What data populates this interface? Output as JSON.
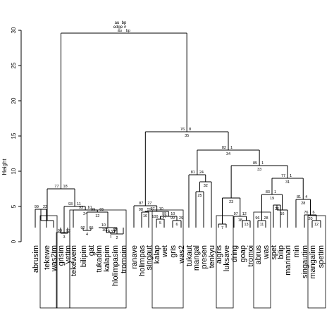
{
  "chart_data": {
    "type": "dendrogram",
    "ylabel": "Height",
    "ylim": [
      0,
      30
    ],
    "yticks": [
      "0",
      "5",
      "10",
      "15",
      "20",
      "25",
      "30"
    ],
    "root_labels": {
      "au": "au",
      "bp": "bp",
      "edge": "edge #"
    },
    "leaves": [
      "abrusim",
      "tekewe",
      "was2im",
      "grisim",
      "yetim",
      "tekewem",
      "bilipim",
      "gat",
      "tukadim",
      "kalapim",
      "hlolimpasim",
      "tromoim",
      "ranave",
      "holimpas",
      "singaut",
      "kalap",
      "wet",
      "gris",
      "was2",
      "tukaut",
      "mangal",
      "presen",
      "tenkyu",
      "aigris",
      "luksave",
      "dring",
      "goap",
      "tromoi",
      "abrus",
      "was",
      "spet",
      "bilip",
      "marimari",
      "min",
      "singautim",
      "mangalim",
      "spetim"
    ],
    "nodes": [
      {
        "id": "n1",
        "a": "L:abrusim",
        "b": "L:tekewe",
        "h": 4.6,
        "au": "99",
        "bp": "22"
      },
      {
        "id": "n2",
        "a": "n1",
        "b": "L:was2im",
        "h": 3.0,
        "au": "",
        "bp": ""
      },
      {
        "id": "n3",
        "a": "L:grisim",
        "b": "L:yetim",
        "h": 1.2,
        "au": "99",
        "bp": "92",
        "edge": "3"
      },
      {
        "id": "n4",
        "a": "L:bilipim",
        "b": "L:gat",
        "h": 1.6,
        "au": "92",
        "bp": "65",
        "edge": "4"
      },
      {
        "id": "n5",
        "a": "L:kalapim",
        "b": "L:hlolimpasim",
        "h": 1.3,
        "au": "100",
        "bp": "12",
        "edge": "1"
      },
      {
        "id": "n6",
        "a": "n5",
        "b": "L:tromoim",
        "h": 1.1,
        "au": "33",
        "bp": "",
        "edge": "2"
      },
      {
        "id": "n7",
        "a": "L:tukadim",
        "b": "n6",
        "h": 2.0,
        "au": "10",
        "bp": "",
        "edge": "14"
      },
      {
        "id": "n8",
        "a": "n4",
        "b": "n7",
        "h": 4.2,
        "au": "99",
        "bp": "65",
        "edge": "12"
      },
      {
        "id": "n9",
        "a": "L:tekewem",
        "b": "n8",
        "h": 4.5,
        "au": "93",
        "bp": "10",
        "edge": "24"
      },
      {
        "id": "n10",
        "a": "n3",
        "b": "n9",
        "h": 5.0,
        "au": "93",
        "bp": "11"
      },
      {
        "id": "n11",
        "a": "n2",
        "b": "n10",
        "h": 7.5,
        "au": "77",
        "bp": "18"
      },
      {
        "id": "n12",
        "a": "L:kalap",
        "b": "L:wet",
        "h": 3.2,
        "au": "100",
        "bp": "97",
        "edge": "5"
      },
      {
        "id": "n13",
        "a": "L:gris",
        "b": "L:was2",
        "h": 3.0,
        "au": "99",
        "bp": "29",
        "edge": "6"
      },
      {
        "id": "n14",
        "a": "n12",
        "b": "n13",
        "h": 3.6,
        "au": "99",
        "bp": "10"
      },
      {
        "id": "n15",
        "a": "L:holimpas",
        "b": "L:singaut",
        "h": 4.2,
        "au": "98",
        "bp": "59",
        "edge": "16"
      },
      {
        "id": "n16",
        "a": "n15",
        "b": "n14",
        "h": 4.3,
        "au": "97",
        "bp": "10"
      },
      {
        "id": "n17",
        "a": "L:ranave",
        "b": "n16",
        "h": 5.1,
        "au": "87",
        "bp": "27"
      },
      {
        "id": "n18",
        "a": "L:mangal",
        "b": "L:presen",
        "h": 7.1,
        "au": "",
        "bp": "",
        "edge": "25"
      },
      {
        "id": "n19",
        "a": "n18",
        "b": "L:tenkyu",
        "h": 8.5,
        "au": "",
        "bp": "",
        "edge": "32"
      },
      {
        "id": "n20",
        "a": "L:tukaut",
        "b": "n19",
        "h": 9.5,
        "au": "81",
        "bp": "24"
      },
      {
        "id": "n21",
        "a": "L:aigris",
        "b": "L:luksave",
        "h": 2.5,
        "au": "",
        "bp": "",
        "edge": "7"
      },
      {
        "id": "n22",
        "a": "L:goap",
        "b": "L:tromoi",
        "h": 3.0,
        "au": "",
        "bp": "",
        "edge": "13"
      },
      {
        "id": "n23",
        "a": "L:dring",
        "b": "n22",
        "h": 3.6,
        "au": "97",
        "bp": "12",
        "edge": "18"
      },
      {
        "id": "n24",
        "a": "n23",
        "b": "n21",
        "h": 5.0,
        "au": "76",
        "bp": "",
        "edge": "21"
      },
      {
        "id": "n25",
        "a": "n21",
        "b": "n23",
        "h": 6.2,
        "au": "",
        "bp": "",
        "edge": "23"
      },
      {
        "id": "n26",
        "a": "L:abrus",
        "b": "L:was",
        "h": 3.0,
        "au": "96",
        "bp": "28",
        "edge": "11"
      },
      {
        "id": "n27",
        "a": "L:spet",
        "b": "L:bilip",
        "h": 5.2,
        "au": "",
        "bp": "",
        "edge": "26"
      },
      {
        "id": "n28",
        "a": "n27",
        "b": "L:marimari",
        "h": 4.5,
        "au": "",
        "bp": "",
        "edge": "16"
      },
      {
        "id": "n29",
        "a": "n26",
        "b": "n28",
        "h": 6.7,
        "au": "83",
        "bp": "1",
        "edge": "19"
      },
      {
        "id": "n30",
        "a": "L:mangalim",
        "b": "L:spetim",
        "h": 3.0,
        "au": "",
        "bp": "",
        "edge": "12"
      },
      {
        "id": "n31",
        "a": "L:singautim",
        "b": "n30",
        "h": 3.8,
        "au": "76",
        "bp": "6",
        "edge": "20"
      },
      {
        "id": "n32",
        "a": "L:min",
        "b": "n31",
        "h": 6.0,
        "au": "81",
        "bp": "4",
        "edge": "28"
      },
      {
        "id": "n33",
        "a": "n29",
        "b": "n32",
        "h": 9.0,
        "au": "77",
        "bp": "1",
        "edge": "31"
      },
      {
        "id": "n34",
        "a": "n25",
        "b": "n33",
        "h": 10.8,
        "au": "85",
        "bp": "1",
        "edge": "33"
      },
      {
        "id": "n35",
        "a": "n20",
        "b": "n34",
        "h": 13.0,
        "au": "82",
        "bp": "1",
        "edge": "34"
      },
      {
        "id": "n36",
        "a": "n17",
        "b": "n35",
        "h": 15.6,
        "au": "76",
        "bp": "8",
        "edge": "35"
      },
      {
        "id": "n37",
        "a": "n11",
        "b": "n36",
        "h": 29.6,
        "au": "au",
        "bp": "bp",
        "edge": "edge #"
      }
    ]
  }
}
